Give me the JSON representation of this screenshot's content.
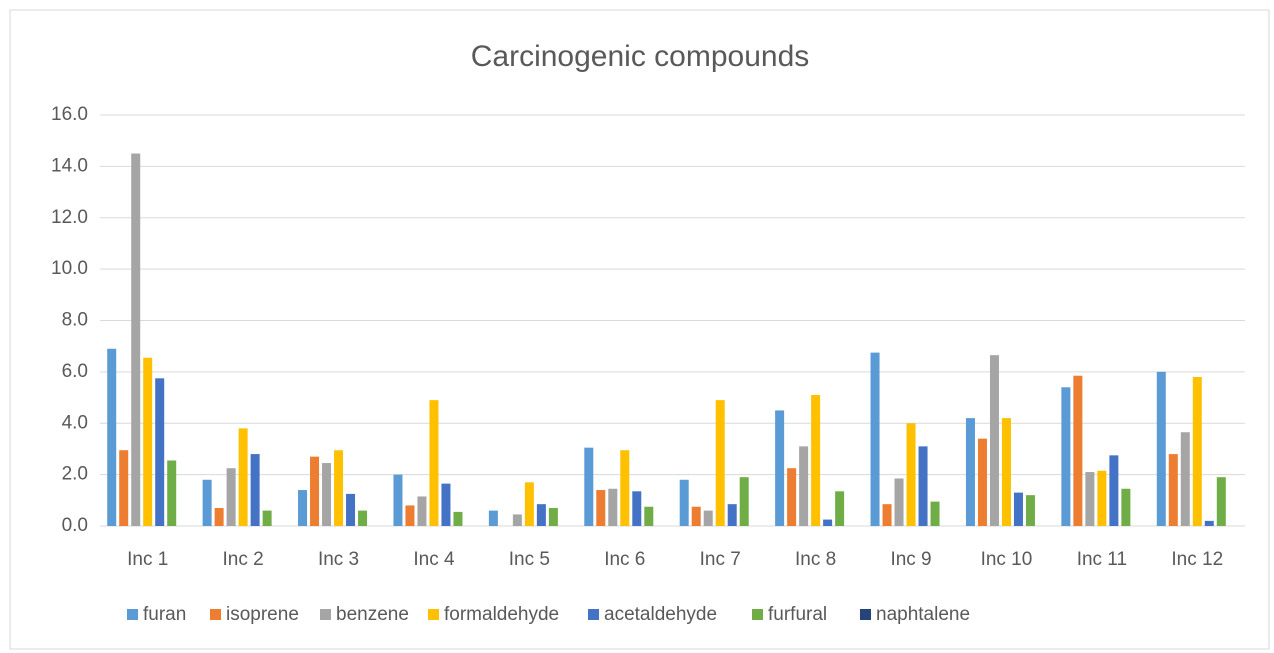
{
  "chart_data": {
    "type": "bar",
    "title": "Carcinogenic compounds",
    "categories": [
      "Inc 1",
      "Inc 2",
      "Inc 3",
      "Inc 4",
      "Inc 5",
      "Inc 6",
      "Inc 7",
      "Inc 8",
      "Inc 9",
      "Inc 10",
      "Inc 11",
      "Inc 12"
    ],
    "series": [
      {
        "name": "furan",
        "color": "#5b9bd5",
        "values": [
          6.9,
          1.8,
          1.4,
          2.0,
          0.6,
          3.05,
          1.8,
          4.5,
          6.75,
          4.2,
          5.4,
          6.0
        ]
      },
      {
        "name": "isoprene",
        "color": "#ed7d31",
        "values": [
          2.95,
          0.7,
          2.7,
          0.8,
          0,
          1.4,
          0.75,
          2.25,
          0.85,
          3.4,
          5.85,
          2.8
        ]
      },
      {
        "name": "benzene",
        "color": "#a5a5a5",
        "values": [
          14.5,
          2.25,
          2.45,
          1.15,
          0.45,
          1.45,
          0.6,
          3.1,
          1.85,
          6.65,
          2.1,
          3.65
        ]
      },
      {
        "name": "formaldehyde",
        "color": "#ffc000",
        "values": [
          6.55,
          3.8,
          2.95,
          4.9,
          1.7,
          2.95,
          4.9,
          5.1,
          4.0,
          4.2,
          2.15,
          5.8
        ]
      },
      {
        "name": "acetaldehyde",
        "color": "#4472c4",
        "values": [
          5.75,
          2.8,
          1.25,
          1.65,
          0.85,
          1.35,
          0.85,
          0.25,
          3.1,
          1.3,
          2.75,
          0.2
        ]
      },
      {
        "name": "furfural",
        "color": "#70ad47",
        "values": [
          2.55,
          0.6,
          0.6,
          0.55,
          0.7,
          0.75,
          1.9,
          1.35,
          0.95,
          1.2,
          1.45,
          1.9
        ]
      },
      {
        "name": "naphtalene",
        "color": "#264478",
        "values": [
          0,
          0,
          0,
          0,
          0,
          0,
          0,
          0,
          0,
          0,
          0,
          0
        ]
      }
    ],
    "ylim": [
      0,
      16
    ],
    "yticks": [
      {
        "value": 0,
        "label": "0.0"
      },
      {
        "value": 2,
        "label": "2.0"
      },
      {
        "value": 4,
        "label": "4.0"
      },
      {
        "value": 6,
        "label": "6.0"
      },
      {
        "value": 8,
        "label": "8.0"
      },
      {
        "value": 10,
        "label": "10.0"
      },
      {
        "value": 12,
        "label": "12.0"
      },
      {
        "value": 14,
        "label": "14.0"
      },
      {
        "value": 16,
        "label": "16.0"
      }
    ],
    "grid": true,
    "legend": "bottom"
  }
}
